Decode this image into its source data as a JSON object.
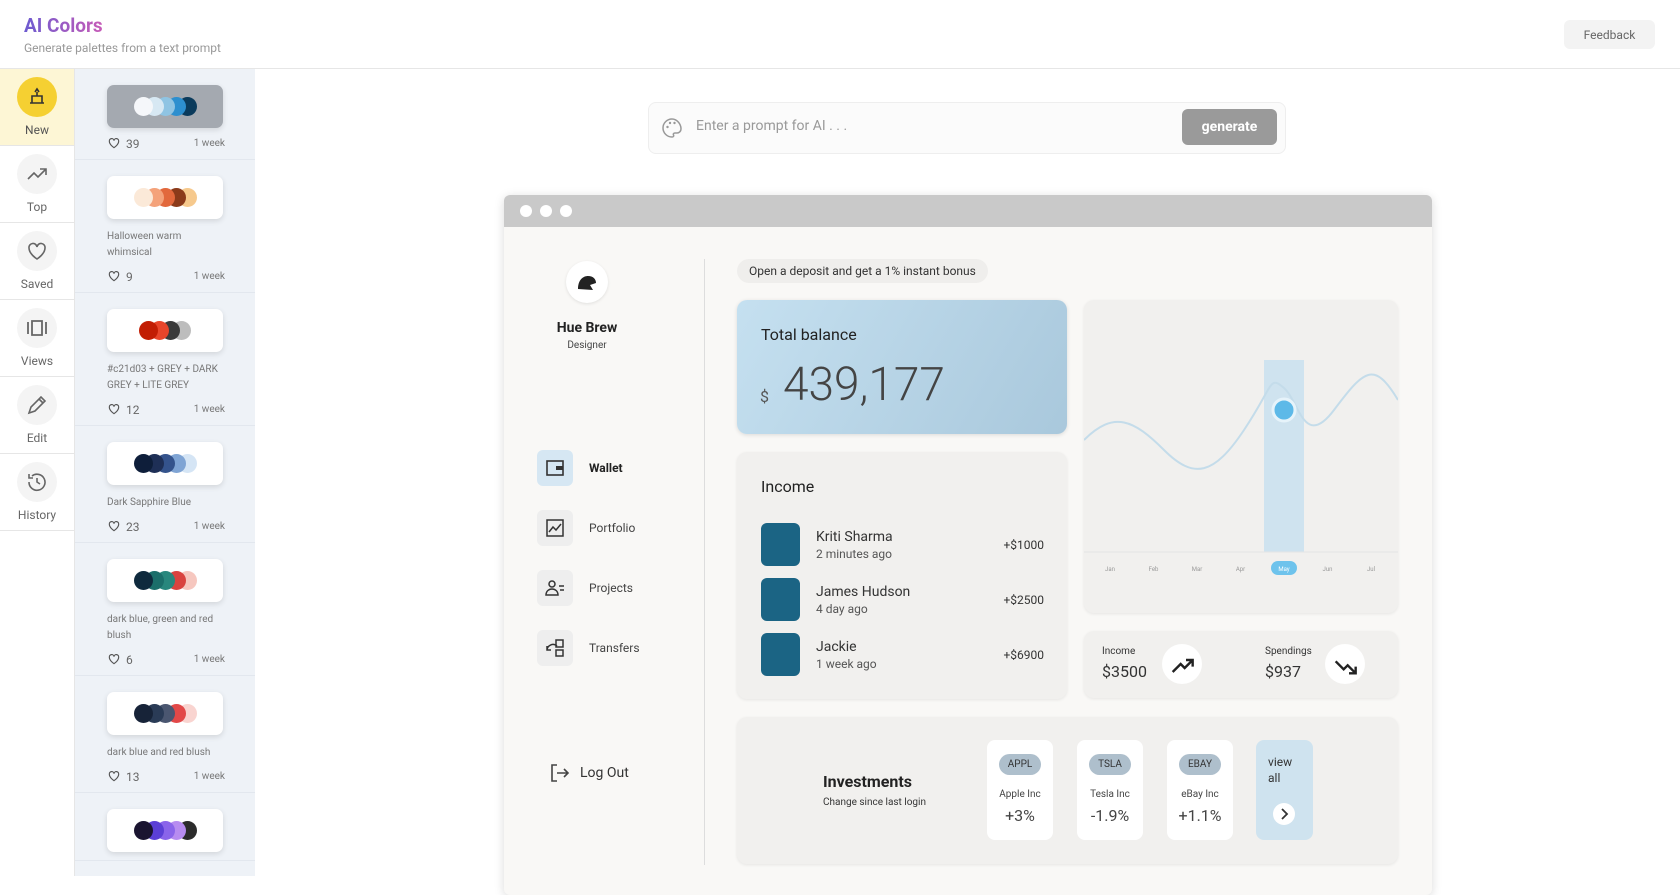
{
  "header": {
    "title": "AI Colors",
    "subtitle": "Generate palettes from a text prompt",
    "feedback": "Feedback"
  },
  "nav": [
    "New",
    "Top",
    "Saved",
    "Views",
    "Edit",
    "History"
  ],
  "palettes": [
    {
      "colors": [
        "#f5f7fa",
        "#d7e8f3",
        "#8fc4e3",
        "#2d8fcf",
        "#0b3b5c"
      ],
      "likes": 39,
      "age": "1 week"
    },
    {
      "colors": [
        "#fbe9d8",
        "#f4a27a",
        "#e2683c",
        "#8b3a1a",
        "#f6c98d"
      ],
      "label": "Halloween warm whimsical",
      "likes": 9,
      "age": "1 week"
    },
    {
      "colors": [
        "#c21d03",
        "#e8452a",
        "#3a3a3a",
        "#bdbdbd"
      ],
      "label": "#c21d03 + GREY + DARK GREY + LITE GREY",
      "likes": 12,
      "age": "1 week"
    },
    {
      "colors": [
        "#0e1e3a",
        "#1e2f56",
        "#34538c",
        "#7fa4d4",
        "#d5e5f5"
      ],
      "label": "Dark Sapphire Blue",
      "likes": 23,
      "age": "1 week"
    },
    {
      "colors": [
        "#0f2a3d",
        "#1b6e6a",
        "#28877d",
        "#d9433f",
        "#f6c7bf"
      ],
      "label": "dark blue, green and red blush",
      "likes": 6,
      "age": "1 week"
    },
    {
      "colors": [
        "#172338",
        "#2a3b56",
        "#4a5670",
        "#e24848",
        "#f9d4d0"
      ],
      "label": "dark blue and red blush",
      "likes": 13,
      "age": "1 week"
    },
    {
      "colors": [
        "#1a1430",
        "#5b3fd6",
        "#8a64ea",
        "#b78cf0",
        "#2b2b2b"
      ]
    }
  ],
  "prompt": {
    "placeholder": "Enter a prompt for AI . . .",
    "button": "generate"
  },
  "preview": {
    "profile": {
      "name": "Hue Brew",
      "role": "Designer"
    },
    "menu": [
      "Wallet",
      "Portfolio",
      "Projects",
      "Transfers"
    ],
    "logout": "Log Out",
    "banner": "Open a deposit and get a 1% instant bonus",
    "balance": {
      "title": "Total balance",
      "currency": "$",
      "amount": "439,177"
    },
    "income": {
      "title": "Income",
      "items": [
        {
          "name": "Kriti Sharma",
          "time": "2 minutes ago",
          "amount": "+$1000"
        },
        {
          "name": "James Hudson",
          "time": "4 day ago",
          "amount": "+$2500"
        },
        {
          "name": "Jackie",
          "time": "1 week ago",
          "amount": "+$6900"
        }
      ]
    },
    "months": [
      "Jan",
      "Feb",
      "Mar",
      "Apr",
      "May",
      "Jun",
      "Jul"
    ],
    "summary": [
      {
        "label": "Income",
        "value": "$3500"
      },
      {
        "label": "Spendings",
        "value": "$937"
      }
    ],
    "investments": {
      "title": "Investments",
      "subtitle": "Change since last login",
      "items": [
        {
          "ticker": "APPL",
          "name": "Apple Inc",
          "change": "+3%"
        },
        {
          "ticker": "TSLA",
          "name": "Tesla Inc",
          "change": "-1.9%"
        },
        {
          "ticker": "EBAY",
          "name": "eBay Inc",
          "change": "+1.1%"
        }
      ],
      "more": "view all"
    }
  }
}
